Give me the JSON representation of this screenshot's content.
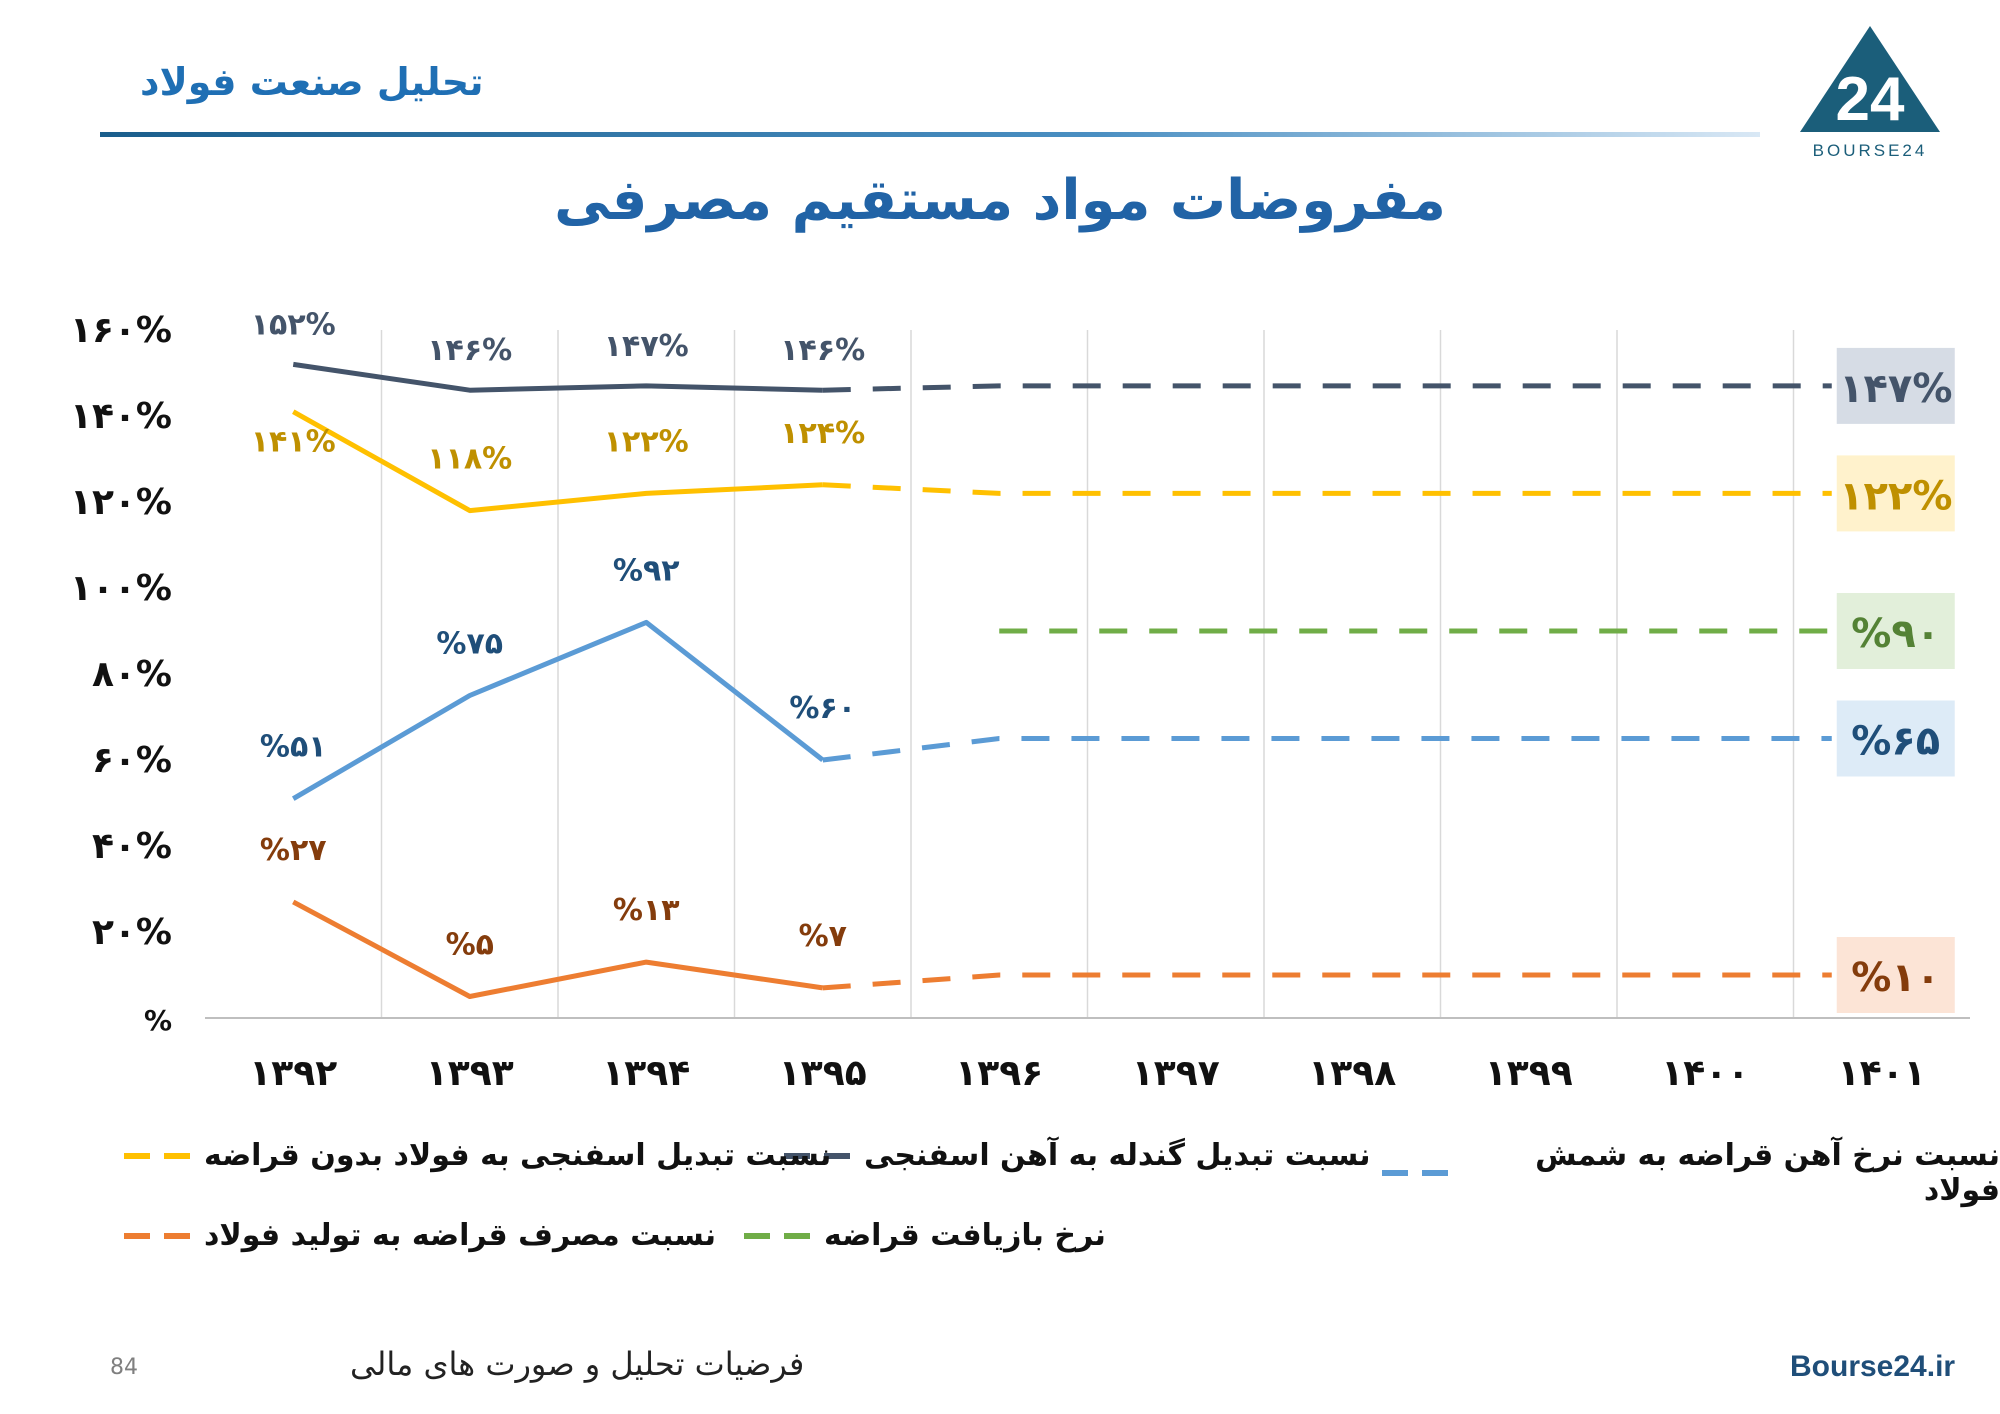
{
  "header": {
    "section_title": "تحلیل صنعت فولاد",
    "logo_text": "BOURSE24",
    "logo_mark": "24"
  },
  "title": "مفروضات مواد مستقیم مصرفی",
  "chart_data": {
    "type": "line",
    "categories": [
      "۱۳۹۲",
      "۱۳۹۳",
      "۱۳۹۴",
      "۱۳۹۵",
      "۱۳۹۶",
      "۱۳۹۷",
      "۱۳۹۸",
      "۱۳۹۹",
      "۱۴۰۰",
      "۱۴۰۱"
    ],
    "y_ticks": [
      "%",
      "۲۰%",
      "۴۰%",
      "۶۰%",
      "۸۰%",
      "۱۰۰%",
      "۱۲۰%",
      "۱۴۰%",
      "۱۶۰%"
    ],
    "ylim": [
      0,
      160
    ],
    "grid": "vertical",
    "series": [
      {
        "name": "نسبت تبدیل گندله به آهن اسفنجی",
        "color": "#44546a",
        "actual": [
          152,
          146,
          147,
          146
        ],
        "actual_labels": [
          "۱۵۲%",
          "۱۴۶%",
          "۱۴۷%",
          "۱۴۶%"
        ],
        "forecast_value": 147,
        "forecast_start": 3,
        "final_label": "۱۴۷%",
        "final_bg": "#d6dce5",
        "label_color": "#44546a"
      },
      {
        "name": "نسبت تبدیل اسفنجی به فولاد بدون قراضه",
        "color": "#ffc000",
        "actual": [
          141,
          118,
          122,
          124
        ],
        "actual_labels": [
          "۱۴۱%",
          "۱۱۸%",
          "۱۲۲%",
          "۱۲۴%"
        ],
        "forecast_value": 122,
        "forecast_start": 3,
        "final_label": "۱۲۲%",
        "final_bg": "#fff2cc",
        "label_color": "#bf9000"
      },
      {
        "name": "نرخ بازیافت قراضه",
        "color": "#70ad47",
        "actual": [],
        "actual_labels": [],
        "forecast_value": 90,
        "forecast_start": 4,
        "final_label": "%۹۰",
        "final_bg": "#e2efda",
        "label_color": "#548235"
      },
      {
        "name": "نسبت نرخ آهن قراضه به شمش فولاد",
        "color": "#5b9bd5",
        "actual": [
          51,
          75,
          92,
          60
        ],
        "actual_labels": [
          "%۵۱",
          "%۷۵",
          "%۹۲",
          "%۶۰"
        ],
        "forecast_value": 65,
        "forecast_start": 3,
        "final_label": "%۶۵",
        "final_bg": "#ddebf7",
        "label_color": "#1f4e79"
      },
      {
        "name": "نسبت مصرف قراضه به تولید فولاد",
        "color": "#ed7d31",
        "actual": [
          27,
          5,
          13,
          7
        ],
        "actual_labels": [
          "%۲۷",
          "%۵",
          "%۱۳",
          "%۷"
        ],
        "forecast_value": 10,
        "forecast_start": 3,
        "final_label": "%۱۰",
        "final_bg": "#fce4d6",
        "label_color": "#843c0c"
      }
    ]
  },
  "footer": {
    "page_number": "84",
    "caption": "فرضیات تحلیل و صورت های مالی",
    "site": "Bourse24.ir"
  }
}
